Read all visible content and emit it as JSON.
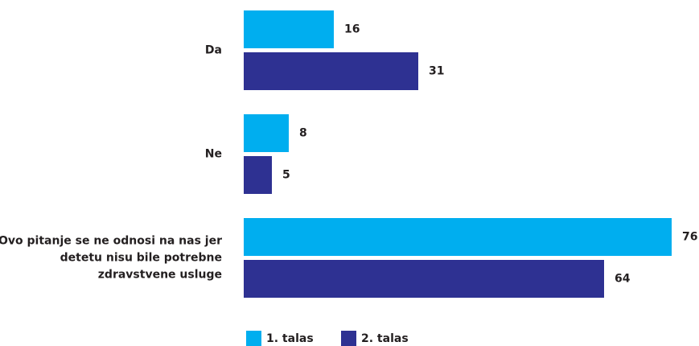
{
  "chart_data": {
    "type": "bar",
    "orientation": "horizontal",
    "categories": [
      "Da",
      "Ne",
      "Ovo pitanje se ne odnosi na nas jer detetu nisu bile potrebne zdravstvene usluge"
    ],
    "series": [
      {
        "name": "1. talas",
        "color": "#00aeef",
        "values": [
          16,
          8,
          76
        ]
      },
      {
        "name": "2. talas",
        "color": "#2e3192",
        "values": [
          31,
          5,
          64
        ]
      }
    ],
    "xlim": [
      0,
      80
    ],
    "legend": "bottom"
  }
}
